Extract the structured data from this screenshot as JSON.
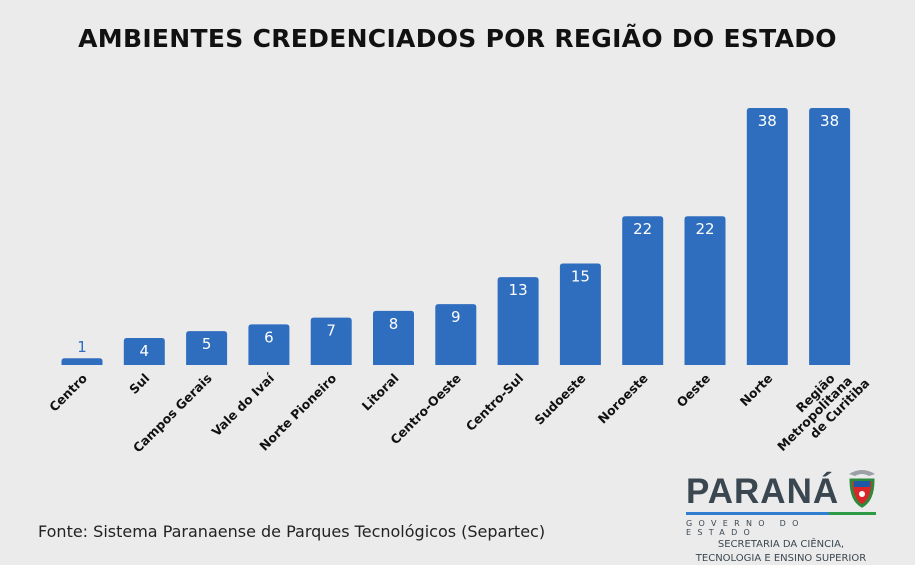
{
  "chart_data": {
    "type": "bar",
    "title": "AMBIENTES CREDENCIADOS POR REGIÃO DO ESTADO",
    "categories": [
      "Centro",
      "Sul",
      "Campos Gerais",
      "Vale do Ivaí",
      "Norte Pioneiro",
      "Litoral",
      "Centro-Oeste",
      "Centro-Sul",
      "Sudoeste",
      "Noroeste",
      "Oeste",
      "Norte",
      "Região Metropolitana de Curitiba"
    ],
    "values": [
      1,
      4,
      5,
      6,
      7,
      8,
      9,
      13,
      15,
      22,
      22,
      38,
      38
    ],
    "xlabel": "",
    "ylabel": "",
    "ylim": [
      0,
      38
    ],
    "grid": false,
    "bar_color": "#2f6ebf"
  },
  "source": "Fonte: Sistema Paranaense de Parques Tecnológicos (Separtec)",
  "logo": {
    "brand": "PARANÁ",
    "subtitle": "GOVERNO DO ESTADO",
    "department_line1": "SECRETARIA DA CIÊNCIA,",
    "department_line2": "TECNOLOGIA E ENSINO SUPERIOR"
  }
}
